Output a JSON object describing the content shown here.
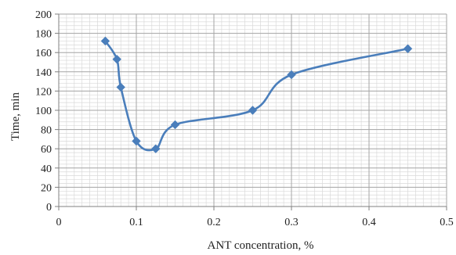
{
  "chart_data": {
    "type": "line",
    "title": "",
    "xlabel": "ANT concentration, %",
    "ylabel": "Time, min",
    "xlim": [
      0,
      0.5
    ],
    "ylim": [
      0,
      200
    ],
    "x_ticks": [
      "0",
      "0.1",
      "0.2",
      "0.3",
      "0.4",
      "0.5"
    ],
    "y_ticks": [
      "0",
      "20",
      "40",
      "60",
      "80",
      "100",
      "120",
      "140",
      "160",
      "180",
      "200"
    ],
    "x_tick_values": [
      0,
      0.1,
      0.2,
      0.3,
      0.4,
      0.5
    ],
    "y_tick_values": [
      0,
      20,
      40,
      60,
      80,
      100,
      120,
      140,
      160,
      180,
      200
    ],
    "grid": true,
    "legend": "none",
    "line_style": "smooth",
    "marker": "diamond",
    "color": "#4a7ebb",
    "series": [
      {
        "x": [
          0.06,
          0.075,
          0.08,
          0.1,
          0.125,
          0.15,
          0.25,
          0.3,
          0.45
        ],
        "y": [
          172,
          153,
          124,
          68,
          60,
          85,
          100,
          137,
          164
        ]
      }
    ]
  }
}
